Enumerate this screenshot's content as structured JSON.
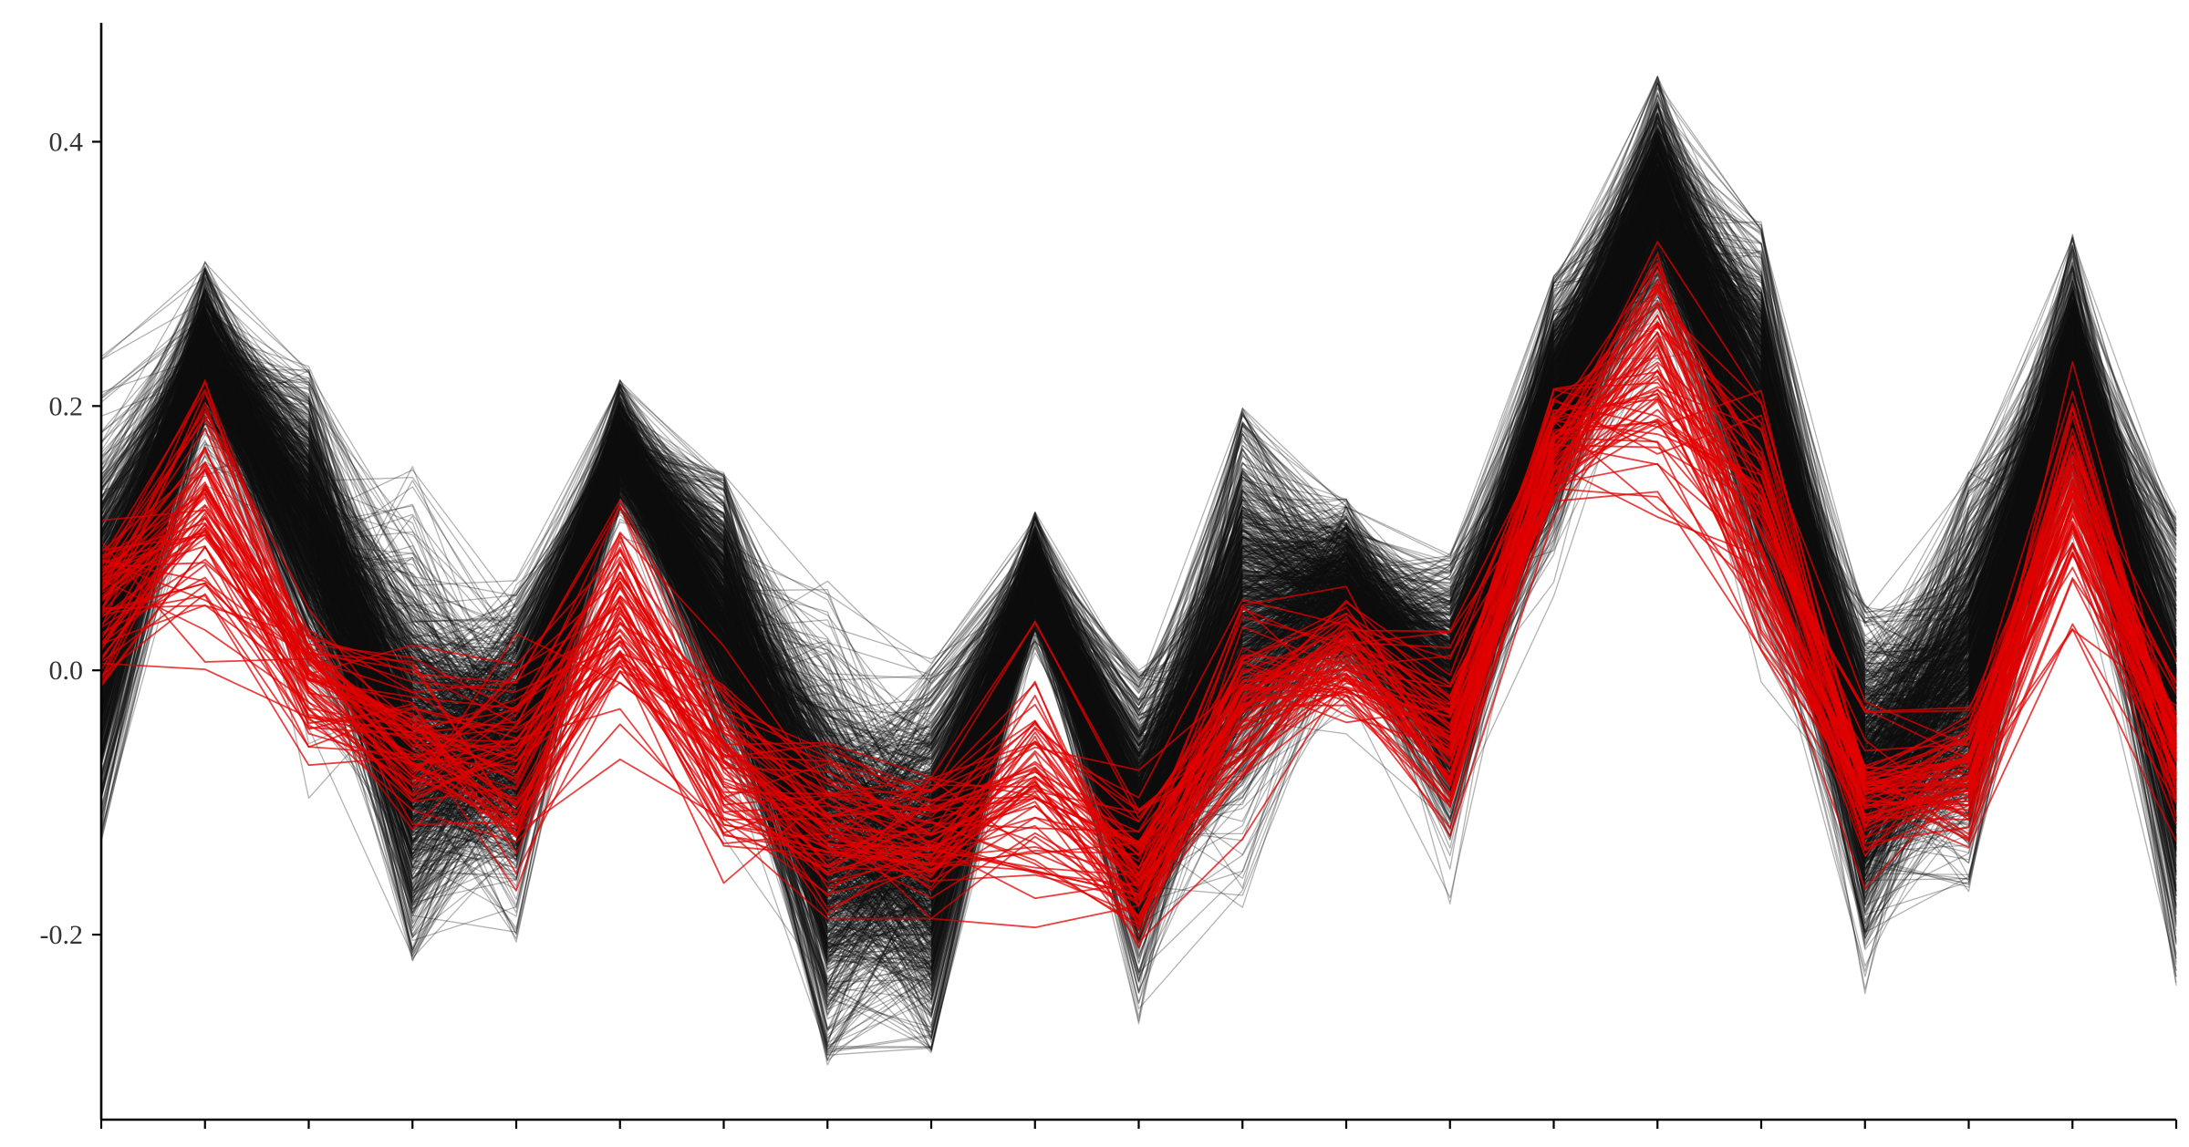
{
  "chart_data": {
    "type": "line",
    "chart_kind": "parallel-coordinates profile plot",
    "title": "",
    "xlabel": "",
    "ylabel": "",
    "x": [
      1,
      2,
      3,
      4,
      5,
      6,
      7,
      8,
      9,
      10,
      11,
      12,
      13,
      14,
      15,
      16,
      17,
      18,
      19,
      20,
      21
    ],
    "x_tick_labels_shown": false,
    "ylim": [
      -0.34,
      0.49
    ],
    "yticks": [
      -0.2,
      0.0,
      0.2,
      0.4
    ],
    "ytick_labels": [
      "-0.2",
      "0.0",
      "0.2",
      "0.4"
    ],
    "grid": false,
    "legend": "none",
    "series": [
      {
        "group": "background",
        "color": "#111111",
        "opacity": 0.32,
        "line_count_estimate": 1000,
        "center": [
          0.03,
          0.24,
          0.11,
          -0.06,
          -0.05,
          0.17,
          0.04,
          -0.13,
          -0.14,
          0.07,
          -0.12,
          0.04,
          0.06,
          -0.02,
          0.2,
          0.36,
          0.19,
          -0.08,
          0.0,
          0.23,
          -0.05
        ],
        "band_min": [
          -0.13,
          -0.05,
          -0.12,
          -0.22,
          -0.21,
          -0.1,
          -0.2,
          -0.3,
          -0.29,
          -0.24,
          -0.29,
          -0.18,
          -0.15,
          -0.18,
          0.05,
          0.08,
          -0.05,
          -0.3,
          -0.17,
          -0.06,
          -0.24
        ],
        "band_max": [
          0.25,
          0.31,
          0.23,
          0.16,
          0.07,
          0.22,
          0.15,
          0.08,
          0.01,
          0.12,
          0.0,
          0.2,
          0.13,
          0.09,
          0.3,
          0.45,
          0.34,
          0.05,
          0.15,
          0.33,
          0.12
        ]
      },
      {
        "group": "highlighted",
        "color": "#e00000",
        "opacity": 0.75,
        "line_count_estimate": 70,
        "center": [
          0.05,
          0.11,
          0.0,
          -0.05,
          -0.07,
          0.04,
          -0.07,
          -0.12,
          -0.12,
          -0.09,
          -0.15,
          -0.02,
          0.01,
          -0.05,
          0.17,
          0.23,
          0.11,
          -0.09,
          -0.08,
          0.13,
          -0.06
        ],
        "band_min": [
          -0.02,
          0.0,
          -0.09,
          -0.15,
          -0.17,
          -0.12,
          -0.17,
          -0.2,
          -0.21,
          -0.2,
          -0.23,
          -0.13,
          -0.17,
          -0.13,
          0.11,
          0.11,
          -0.05,
          -0.17,
          -0.14,
          0.02,
          -0.13
        ],
        "band_max": [
          0.12,
          0.22,
          0.06,
          0.03,
          0.03,
          0.13,
          0.02,
          -0.05,
          -0.05,
          0.04,
          -0.07,
          0.06,
          0.07,
          0.03,
          0.23,
          0.35,
          0.24,
          -0.02,
          0.02,
          0.24,
          0.01
        ]
      }
    ]
  }
}
